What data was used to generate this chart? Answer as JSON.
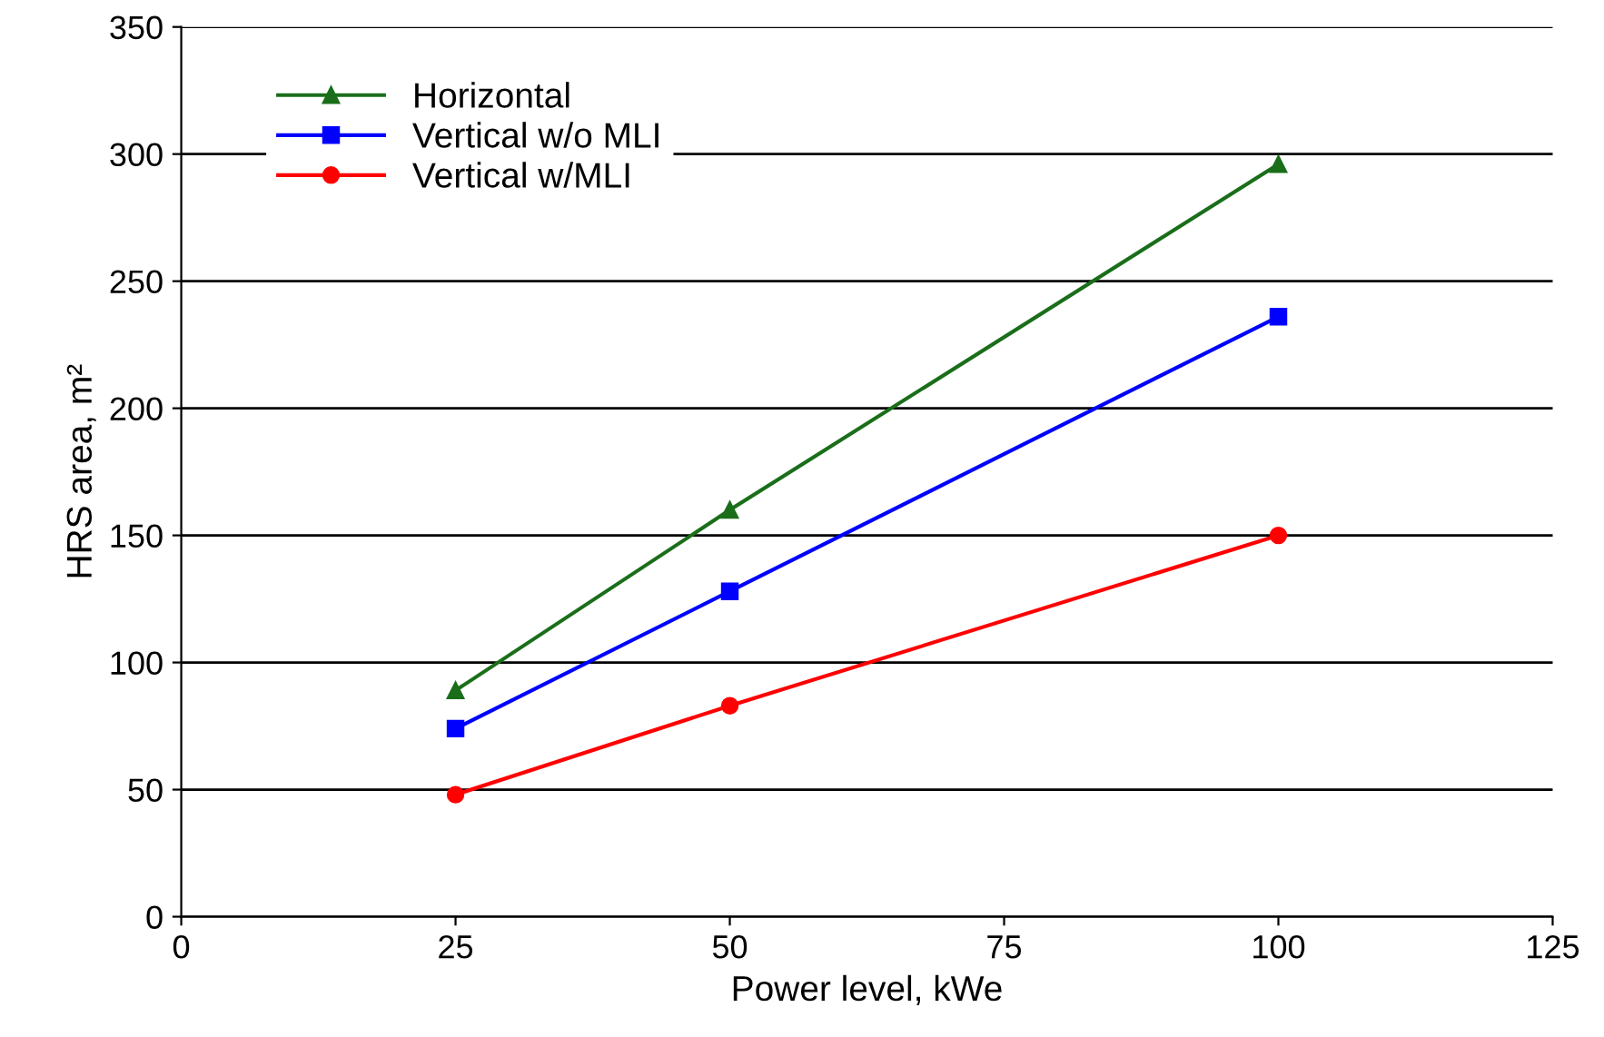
{
  "chart_data": {
    "type": "line",
    "xlabel": "Power level, kWe",
    "ylabel": "HRS area, m²",
    "x": [
      25,
      50,
      100
    ],
    "series": [
      {
        "name": "Horizontal",
        "color": "#1a6e1a",
        "marker": "triangle",
        "values": [
          89,
          160,
          296
        ]
      },
      {
        "name": "Vertical w/o MLI",
        "color": "#0000ff",
        "marker": "square",
        "values": [
          74,
          128,
          236
        ]
      },
      {
        "name": "Vertical w/MLI",
        "color": "#ff0000",
        "marker": "circle",
        "values": [
          48,
          83,
          150
        ]
      }
    ],
    "xlim": [
      0,
      125
    ],
    "xticks": [
      0,
      25,
      50,
      75,
      100,
      125
    ],
    "ylim": [
      0,
      350
    ],
    "yticks": [
      0,
      50,
      100,
      150,
      200,
      250,
      300,
      350
    ],
    "grid": "y",
    "legend": "top left",
    "line_style": "solid"
  }
}
